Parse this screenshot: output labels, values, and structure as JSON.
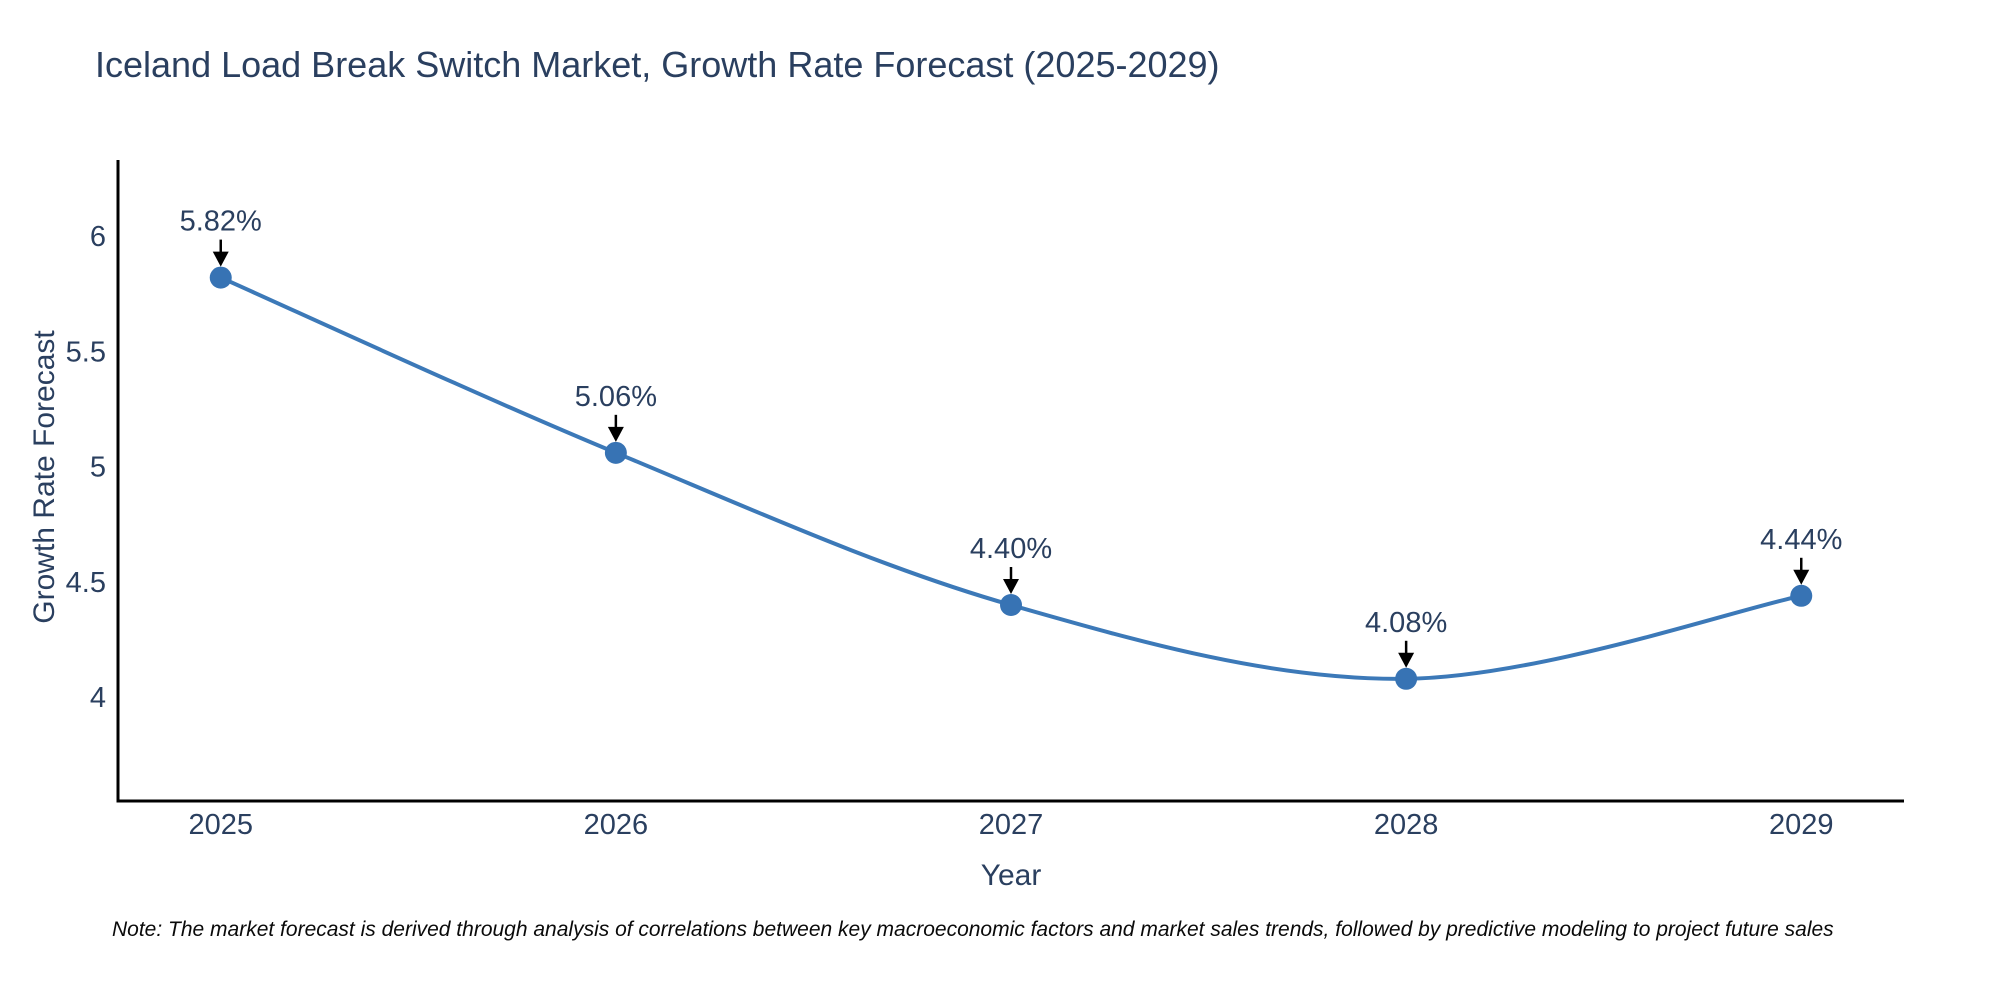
{
  "page": {
    "title": "Iceland Load Break Switch Market, Growth Rate Forecast (2025-2029)",
    "footnote": "Note: The market forecast is derived through analysis of correlations between key macroeconomic factors and market sales trends, followed by predictive modeling to project future sales"
  },
  "chart_data": {
    "type": "line",
    "title": "Iceland Load Break Switch Market, Growth Rate Forecast (2025-2029)",
    "xlabel": "Year",
    "ylabel": "Growth Rate Forecast",
    "x": [
      2025,
      2026,
      2027,
      2028,
      2029
    ],
    "series": [
      {
        "name": "Growth Rate Forecast",
        "values": [
          5.82,
          5.06,
          4.4,
          4.08,
          4.44
        ],
        "point_labels": [
          "5.82%",
          "5.06%",
          "4.40%",
          "4.08%",
          "4.44%"
        ]
      }
    ],
    "line_shape": "spline",
    "markers": true,
    "annotation_style": "value label above each point with black arrow pointing down to marker",
    "xticks": [
      "2025",
      "2026",
      "2027",
      "2028",
      "2029"
    ],
    "yticks": [
      "4",
      "4.5",
      "5",
      "5.5",
      "6"
    ],
    "ytick_values": [
      4,
      4.5,
      5,
      5.5,
      6
    ],
    "xtick_values": [
      2025,
      2026,
      2027,
      2028,
      2029
    ],
    "xlim": [
      2024.74,
      2029.26
    ],
    "ylim": [
      3.55,
      6.33
    ],
    "grid": false,
    "legend_position": "none",
    "colors": {
      "line": "#3c79b8",
      "marker": "#3773b4",
      "text": "#2a3f5f",
      "axis": "#000000",
      "arrow": "#000000",
      "background": "#ffffff"
    }
  }
}
